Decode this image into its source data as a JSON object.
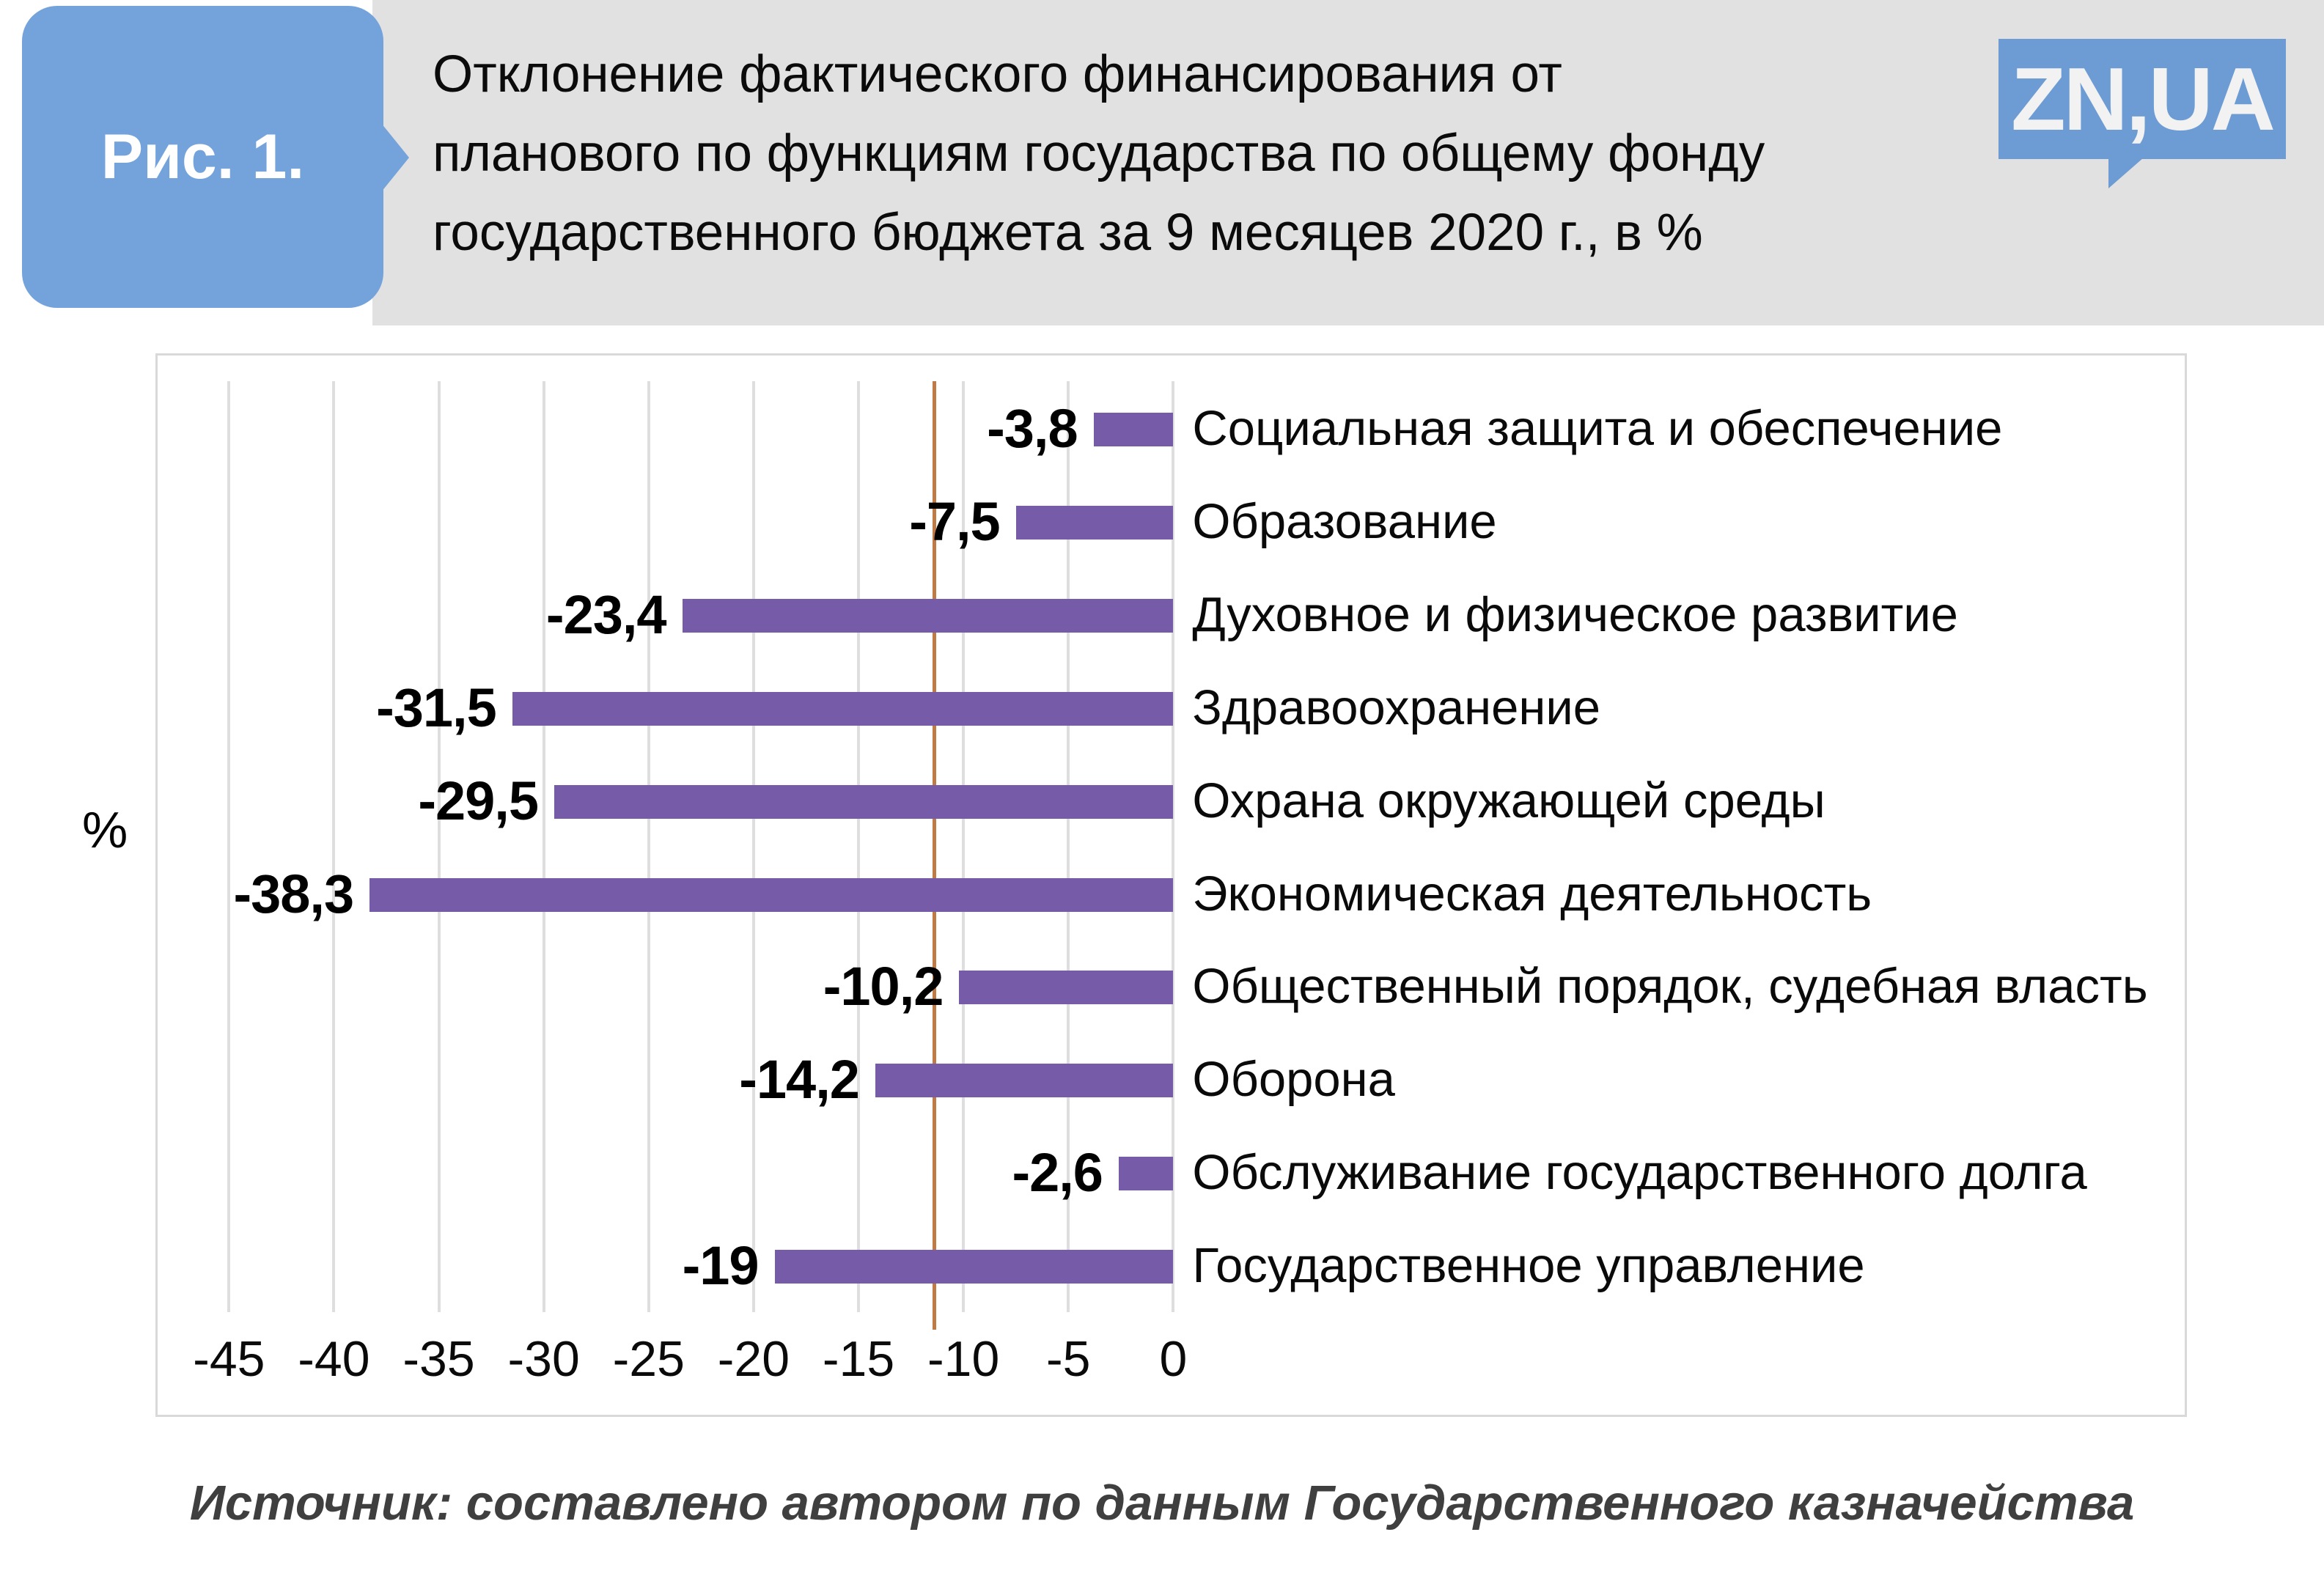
{
  "figure": {
    "label": "Рис. 1.",
    "title": "Отклонение фактического финансирования от планового по функциям государства по общему фонду государственного бюджета за 9 месяцев 2020 г., в %",
    "title_lines": [
      "Отклонение фактического финансирования от",
      "планового по функциям государства по общему фонду",
      "государственного бюджета за 9 месяцев 2020 г., в %"
    ]
  },
  "logo": {
    "text": "ZN,UA"
  },
  "chart_data": {
    "type": "bar",
    "orientation": "horizontal",
    "unit": "%",
    "ylabel": "%",
    "categories": [
      "Социальная защита и обеспечение",
      "Образование",
      "Духовное и физическое развитие",
      "Здравоохранение",
      "Охрана окружающей среды",
      "Экономическая деятельность",
      "Общественный порядок, судебная власть",
      "Оборона",
      "Обслуживание государственного долга",
      "Государственное управление"
    ],
    "values": [
      -3.8,
      -7.5,
      -23.4,
      -31.5,
      -29.5,
      -38.3,
      -10.2,
      -14.2,
      -2.6,
      -19
    ],
    "value_labels": [
      "-3,8",
      "-7,5",
      "-23,4",
      "-31,5",
      "-29,5",
      "-38,3",
      "-10,2",
      "-14,2",
      "-2,6",
      "-19"
    ],
    "tick_values": [
      -45,
      -40,
      -35,
      -30,
      -25,
      -20,
      -15,
      -10,
      -5,
      0
    ],
    "tick_labels": [
      "-45",
      "-40",
      "-35",
      "-30",
      "-25",
      "-20",
      "-15",
      "-10",
      "-5",
      "0"
    ],
    "axis_range": [
      -48.4,
      48.2
    ],
    "reference_line": -11.4,
    "grid": true,
    "legend": "none",
    "colors": {
      "bar": "#765CA8",
      "reference_line": "#C07A46",
      "gridline": "#DEDEDE",
      "panel_border": "#D9D9D9",
      "header_gray": "#E1E1E1",
      "badge_blue": "#74A3DC",
      "logo_blue": "#6C9CD3"
    }
  },
  "source": "Источник: составлено автором по данным Государственного казначейства"
}
